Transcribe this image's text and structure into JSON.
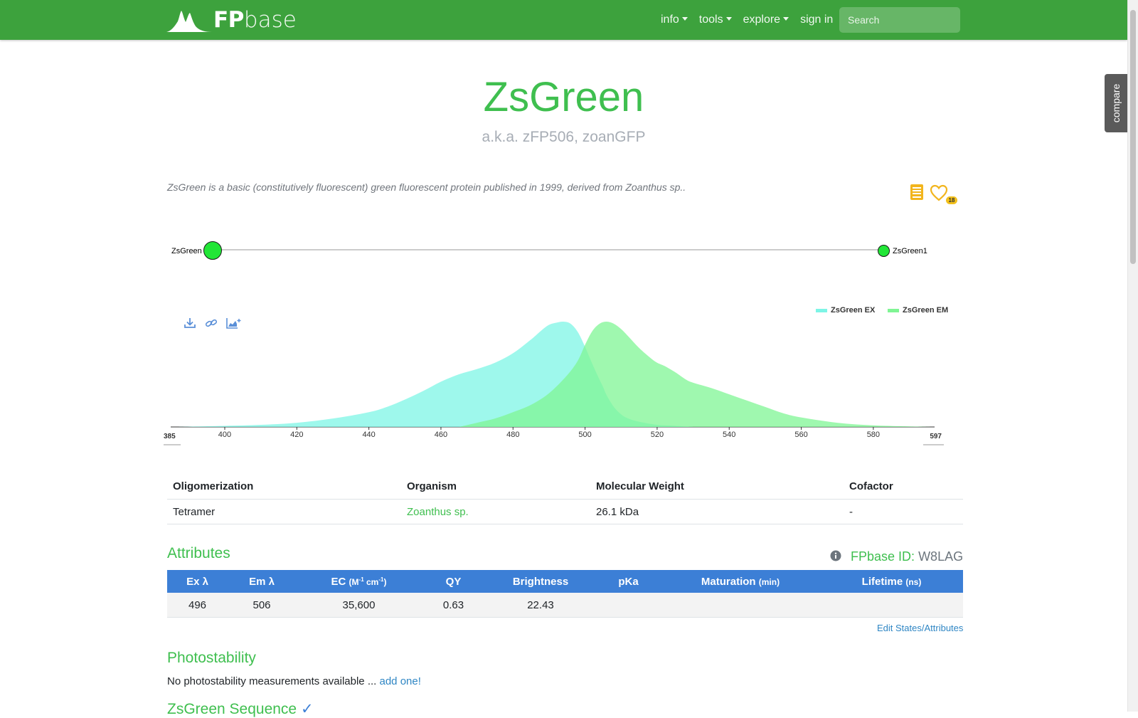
{
  "nav": {
    "brand_bold": "FP",
    "brand_light": "base",
    "links": [
      {
        "label": "info",
        "dropdown": true
      },
      {
        "label": "tools",
        "dropdown": true
      },
      {
        "label": "explore",
        "dropdown": true
      },
      {
        "label": "sign in",
        "dropdown": false
      }
    ],
    "search_placeholder": "Search",
    "color": "#3da23d"
  },
  "compare_tab": "compare",
  "protein": {
    "name": "ZsGreen",
    "aka": "a.k.a. zFP506, zoanGFP",
    "description": "ZsGreen is a basic (constitutively fluorescent) green fluorescent protein published in 1999, derived from Zoanthus sp..",
    "favorites_count": "18"
  },
  "lineage": {
    "parent": "ZsGreen",
    "child": "ZsGreen1"
  },
  "chart_data": {
    "type": "area",
    "title": "",
    "xlabel": "",
    "ylabel": "",
    "xlim": [
      385,
      597
    ],
    "ylim": [
      0,
      1
    ],
    "x_ticks": [
      400,
      420,
      440,
      460,
      480,
      500,
      520,
      540,
      560,
      580
    ],
    "x_range_labels": [
      "385",
      "597"
    ],
    "legend_position": "top-right",
    "series": [
      {
        "name": "ZsGreen EX",
        "color": "#7df5e6",
        "x": [
          387,
          400,
          410,
          420,
          430,
          440,
          445,
          450,
          455,
          460,
          465,
          470,
          475,
          480,
          485,
          488,
          490,
          492,
          494,
          496,
          498,
          500,
          502,
          504,
          505,
          506,
          508,
          510,
          512,
          515,
          520,
          525,
          530
        ],
        "y": [
          0.0,
          0.01,
          0.02,
          0.04,
          0.08,
          0.14,
          0.19,
          0.26,
          0.34,
          0.43,
          0.5,
          0.55,
          0.61,
          0.7,
          0.83,
          0.92,
          0.97,
          0.99,
          1.0,
          0.98,
          0.9,
          0.76,
          0.6,
          0.45,
          0.38,
          0.3,
          0.19,
          0.12,
          0.08,
          0.05,
          0.02,
          0.01,
          0.0
        ]
      },
      {
        "name": "ZsGreen EM",
        "color": "#7ff594",
        "x": [
          465,
          470,
          475,
          480,
          485,
          490,
          495,
          498,
          500,
          502,
          504,
          506,
          508,
          510,
          512,
          515,
          518,
          520,
          522,
          525,
          528,
          530,
          535,
          540,
          545,
          550,
          555,
          560,
          570,
          580,
          590,
          596
        ],
        "y": [
          0.0,
          0.04,
          0.08,
          0.14,
          0.21,
          0.32,
          0.49,
          0.63,
          0.78,
          0.91,
          0.98,
          1.0,
          0.98,
          0.93,
          0.86,
          0.75,
          0.66,
          0.61,
          0.58,
          0.52,
          0.45,
          0.42,
          0.37,
          0.31,
          0.25,
          0.19,
          0.13,
          0.09,
          0.04,
          0.015,
          0.005,
          0.0
        ]
      }
    ]
  },
  "basic_table": {
    "headers": [
      "Oligomerization",
      "Organism",
      "Molecular Weight",
      "Cofactor"
    ],
    "row": [
      "Tetramer",
      "Zoanthus sp.",
      "26.1 kDa",
      "-"
    ]
  },
  "attributes": {
    "title": "Attributes",
    "fpbase_id_label": "FPbase ID:",
    "fpbase_id": "W8LAG",
    "headers": {
      "ex": "Ex λ",
      "em": "Em λ",
      "ec": "EC",
      "ec_unit": "(M-1 cm-1)",
      "qy": "QY",
      "brightness": "Brightness",
      "pka": "pKa",
      "maturation": "Maturation",
      "maturation_unit": "(min)",
      "lifetime": "Lifetime",
      "lifetime_unit": "(ns)"
    },
    "values": {
      "ex": "496",
      "em": "506",
      "ec": "35,600",
      "qy": "0.63",
      "brightness": "22.43",
      "pka": "",
      "maturation": "",
      "lifetime": ""
    },
    "header_color": "#3c7fd6",
    "edit_link": "Edit States/Attributes"
  },
  "photostability": {
    "title": "Photostability",
    "text": "No photostability measurements available ...",
    "link": "add one!"
  },
  "sequence": {
    "title": "ZsGreen Sequence"
  }
}
